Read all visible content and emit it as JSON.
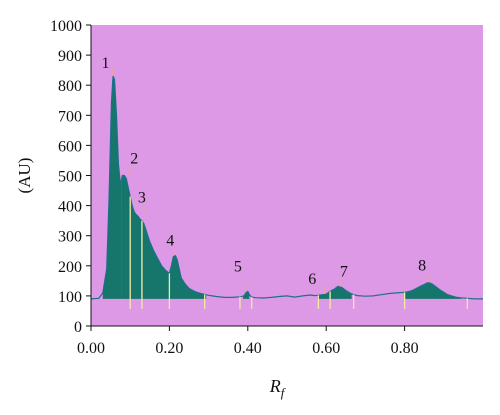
{
  "chart_data": {
    "type": "area",
    "title": "",
    "xlabel": "R",
    "xlabel_sub": "f",
    "ylabel": "(AU)",
    "xlim": [
      0.0,
      1.0
    ],
    "ylim": [
      0,
      1000
    ],
    "x_ticks": [
      0.0,
      0.2,
      0.4,
      0.6,
      0.8
    ],
    "x_tick_labels": [
      "0.00",
      "0.20",
      "0.40",
      "0.60",
      "0.80"
    ],
    "y_ticks": [
      0,
      100,
      200,
      300,
      400,
      500,
      600,
      700,
      800,
      900,
      1000
    ],
    "y_tick_labels": [
      "0",
      "100",
      "200",
      "300",
      "400",
      "500",
      "600",
      "700",
      "800",
      "900",
      "1000"
    ],
    "grid": false,
    "legend": "none",
    "baseline": 90,
    "colors": {
      "plot_background": "#dd99e6",
      "peak_fill": "#16766b",
      "trace": "#1f6f8b",
      "markers": "#f3e8a6",
      "peak_marks": "#f0a0a0"
    },
    "series": [
      {
        "x": [
          0.0,
          0.02,
          0.03,
          0.04,
          0.046,
          0.052,
          0.056,
          0.06,
          0.065,
          0.07,
          0.075,
          0.08,
          0.085,
          0.09,
          0.095,
          0.1,
          0.105,
          0.11,
          0.115,
          0.12,
          0.125,
          0.13,
          0.135,
          0.14,
          0.145,
          0.15,
          0.16,
          0.17,
          0.18,
          0.19,
          0.2,
          0.205,
          0.21,
          0.215,
          0.22,
          0.225,
          0.23,
          0.24,
          0.25,
          0.26,
          0.27,
          0.28,
          0.29,
          0.3,
          0.32,
          0.34,
          0.36,
          0.37,
          0.38,
          0.39,
          0.395,
          0.4,
          0.405,
          0.41,
          0.42,
          0.44,
          0.46,
          0.48,
          0.5,
          0.52,
          0.54,
          0.56,
          0.57,
          0.58,
          0.59,
          0.6,
          0.61,
          0.62,
          0.63,
          0.64,
          0.65,
          0.66,
          0.67,
          0.68,
          0.7,
          0.72,
          0.74,
          0.76,
          0.78,
          0.8,
          0.81,
          0.82,
          0.83,
          0.84,
          0.85,
          0.86,
          0.87,
          0.88,
          0.89,
          0.9,
          0.91,
          0.92,
          0.93,
          0.94,
          0.96,
          0.98,
          1.0
        ],
        "y": [
          90,
          92,
          110,
          190,
          420,
          740,
          830,
          820,
          700,
          540,
          470,
          500,
          500,
          490,
          460,
          430,
          400,
          380,
          370,
          365,
          355,
          350,
          340,
          320,
          300,
          280,
          250,
          225,
          200,
          185,
          175,
          200,
          230,
          235,
          220,
          190,
          160,
          140,
          125,
          118,
          112,
          108,
          105,
          102,
          98,
          95,
          95,
          96,
          97,
          100,
          110,
          115,
          102,
          96,
          94,
          93,
          95,
          98,
          100,
          96,
          100,
          103,
          101,
          102,
          104,
          106,
          115,
          122,
          132,
          128,
          118,
          110,
          104,
          101,
          99,
          100,
          104,
          108,
          110,
          112,
          114,
          118,
          125,
          132,
          138,
          145,
          140,
          130,
          120,
          112,
          104,
          100,
          96,
          94,
          92,
          90,
          90
        ]
      }
    ],
    "peaks": [
      {
        "label": "1",
        "x": 0.055,
        "y": 830,
        "fill_from": 0.03,
        "fill_to": 0.078
      },
      {
        "label": "2",
        "x": 0.1,
        "y": 500,
        "fill_from": 0.078,
        "fill_to": 0.128
      },
      {
        "label": "3",
        "x": 0.135,
        "y": 370,
        "fill_from": 0.128,
        "fill_to": 0.2
      },
      {
        "label": "4",
        "x": 0.215,
        "y": 235,
        "fill_from": 0.2,
        "fill_to": 0.294
      },
      {
        "label": "5",
        "x": 0.395,
        "y": 115,
        "fill_from": 0.388,
        "fill_to": 0.404
      },
      {
        "label": "6",
        "x": 0.595,
        "y": 106,
        "fill_from": 0.578,
        "fill_to": 0.608
      },
      {
        "label": "7",
        "x": 0.635,
        "y": 132,
        "fill_from": 0.608,
        "fill_to": 0.665
      },
      {
        "label": "8",
        "x": 0.86,
        "y": 145,
        "fill_from": 0.8,
        "fill_to": 0.945
      }
    ],
    "markers": [
      0.1,
      0.13,
      0.2,
      0.29,
      0.38,
      0.41,
      0.58,
      0.61,
      0.67,
      0.8,
      0.96
    ]
  }
}
